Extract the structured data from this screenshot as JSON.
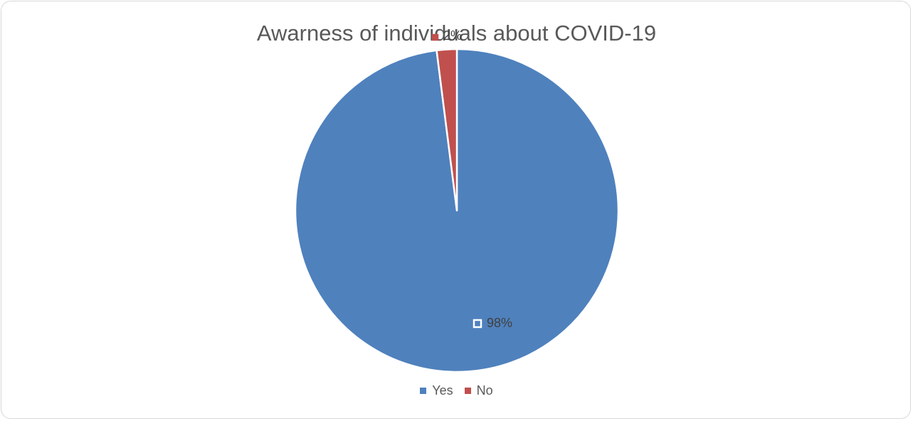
{
  "chart_data": {
    "type": "pie",
    "title": "Awarness of individuals about COVID-19",
    "categories": [
      "Yes",
      "No"
    ],
    "values": [
      98,
      2
    ],
    "data_labels": [
      "98%",
      "2%"
    ],
    "colors": [
      "#4f81bd",
      "#c0504d"
    ],
    "legend_position": "bottom",
    "start_angle_deg": 0,
    "direction": "clockwise"
  }
}
